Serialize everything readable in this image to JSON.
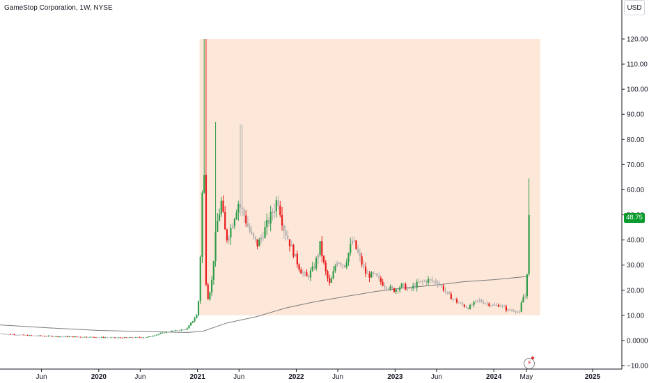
{
  "header": {
    "title": "GameStop Corporation, 1W, NYSE",
    "currency": "USD"
  },
  "price_badge": {
    "label": "48.75",
    "color": "#0a9b2e"
  },
  "icon": {
    "name": "lightning-icon",
    "color": "#e02a2a"
  },
  "colors": {
    "up": "#2e9d4a",
    "down": "#e81b1b",
    "neutral": "#b0b0b0",
    "highlight": "#fde7d8",
    "ma": "#7a7a7a",
    "axis": "#131722"
  },
  "chart_data": {
    "type": "candlestick",
    "title": "GameStop Corporation, 1W, NYSE",
    "ylim": [
      -10,
      123
    ],
    "y_ticks": [
      "120.00",
      "110.00",
      "100.00",
      "90.00",
      "80.00",
      "70.00",
      "60.00",
      "50.00",
      "40.00",
      "30.00",
      "20.00",
      "10.00",
      "0.0000",
      "−10.00"
    ],
    "x_ticks": [
      {
        "label": "Jun",
        "bold": false,
        "t": 2019.42
      },
      {
        "label": "2020",
        "bold": true,
        "t": 2020.0
      },
      {
        "label": "Jun",
        "bold": false,
        "t": 2020.42
      },
      {
        "label": "2021",
        "bold": true,
        "t": 2021.0
      },
      {
        "label": "Jun",
        "bold": false,
        "t": 2021.42
      },
      {
        "label": "2022",
        "bold": true,
        "t": 2022.0
      },
      {
        "label": "Jun",
        "bold": false,
        "t": 2022.42
      },
      {
        "label": "2023",
        "bold": true,
        "t": 2023.0
      },
      {
        "label": "Jun",
        "bold": false,
        "t": 2023.42
      },
      {
        "label": "2024",
        "bold": true,
        "t": 2024.0
      },
      {
        "label": "May",
        "bold": false,
        "t": 2024.33
      },
      {
        "label": "2025",
        "bold": true,
        "t": 2025.0
      }
    ],
    "highlight_range": {
      "t0": 2021.02,
      "t1": 2024.47,
      "low": 10,
      "high": 120
    },
    "last_price": 48.75,
    "price_path": [
      [
        2019.0,
        2.8
      ],
      [
        2019.3,
        2.0
      ],
      [
        2019.6,
        1.6
      ],
      [
        2019.9,
        1.4
      ],
      [
        2020.2,
        1.1
      ],
      [
        2020.5,
        1.3
      ],
      [
        2020.7,
        3.5
      ],
      [
        2020.9,
        4.5
      ],
      [
        2021.0,
        10
      ],
      [
        2021.02,
        16
      ],
      [
        2021.05,
        45
      ],
      [
        2021.07,
        80
      ],
      [
        2021.1,
        15
      ],
      [
        2021.15,
        22
      ],
      [
        2021.2,
        45
      ],
      [
        2021.25,
        55
      ],
      [
        2021.3,
        40
      ],
      [
        2021.35,
        45
      ],
      [
        2021.42,
        55
      ],
      [
        2021.48,
        50
      ],
      [
        2021.55,
        42
      ],
      [
        2021.62,
        38
      ],
      [
        2021.7,
        45
      ],
      [
        2021.78,
        52
      ],
      [
        2021.82,
        57
      ],
      [
        2021.88,
        45
      ],
      [
        2021.95,
        38
      ],
      [
        2022.05,
        28
      ],
      [
        2022.12,
        25
      ],
      [
        2022.2,
        30
      ],
      [
        2022.25,
        38
      ],
      [
        2022.3,
        28
      ],
      [
        2022.35,
        22
      ],
      [
        2022.42,
        32
      ],
      [
        2022.5,
        30
      ],
      [
        2022.58,
        40
      ],
      [
        2022.65,
        33
      ],
      [
        2022.72,
        26
      ],
      [
        2022.8,
        26
      ],
      [
        2022.9,
        22
      ],
      [
        2023.0,
        20
      ],
      [
        2023.08,
        22
      ],
      [
        2023.15,
        20
      ],
      [
        2023.25,
        23
      ],
      [
        2023.35,
        24
      ],
      [
        2023.45,
        23
      ],
      [
        2023.55,
        18
      ],
      [
        2023.65,
        15
      ],
      [
        2023.75,
        13
      ],
      [
        2023.85,
        16
      ],
      [
        2023.92,
        15
      ],
      [
        2024.0,
        14
      ],
      [
        2024.08,
        14
      ],
      [
        2024.15,
        12
      ],
      [
        2024.22,
        12
      ],
      [
        2024.27,
        11
      ],
      [
        2024.3,
        17
      ],
      [
        2024.34,
        18
      ],
      [
        2024.36,
        48.75
      ]
    ],
    "moving_average": [
      [
        2019.0,
        6.2
      ],
      [
        2019.5,
        5.0
      ],
      [
        2020.0,
        4.0
      ],
      [
        2020.5,
        3.5
      ],
      [
        2020.9,
        3.2
      ],
      [
        2021.05,
        3.6
      ],
      [
        2021.3,
        7
      ],
      [
        2021.6,
        9.5
      ],
      [
        2021.9,
        13
      ],
      [
        2022.2,
        15.5
      ],
      [
        2022.5,
        17.5
      ],
      [
        2022.8,
        19.5
      ],
      [
        2023.1,
        21
      ],
      [
        2023.4,
        22
      ],
      [
        2023.7,
        23.4
      ],
      [
        2024.0,
        24.2
      ],
      [
        2024.35,
        25.5
      ]
    ]
  }
}
